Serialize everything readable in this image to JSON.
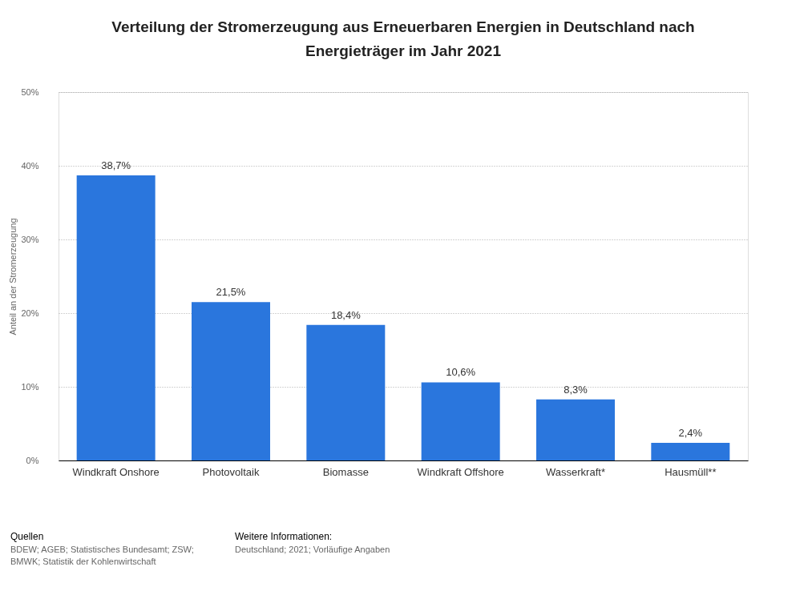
{
  "chart_data": {
    "type": "bar",
    "title": "Verteilung der Stromerzeugung aus Erneuerbaren Energien in Deutschland nach Energieträger im Jahr 2021",
    "ylabel": "Anteil an der Stromerzeugung",
    "categories": [
      "Windkraft Onshore",
      "Photovoltaik",
      "Biomasse",
      "Windkraft Offshore",
      "Wasserkraft*",
      "Hausmüll**"
    ],
    "values": [
      38.7,
      21.5,
      18.4,
      10.6,
      8.3,
      2.4
    ],
    "value_labels": [
      "38,7%",
      "21,5%",
      "18,4%",
      "10,6%",
      "8,3%",
      "2,4%"
    ],
    "color": "#2a76dd",
    "ylim": [
      0,
      50
    ],
    "yticks": [
      {
        "value": 0,
        "label": "0%"
      },
      {
        "value": 10,
        "label": "10%"
      },
      {
        "value": 20,
        "label": "20%"
      },
      {
        "value": 30,
        "label": "30%"
      },
      {
        "value": 40,
        "label": "40%"
      },
      {
        "value": 50,
        "label": "50%"
      }
    ],
    "grid": "y",
    "annotations": [
      "Quellen",
      "BDEW; AGEB; Statistisches Bundesamt; ZSW; BMWK; Statistik der Kohlenwirtschaft",
      "Weitere Informationen:",
      "Deutschland; 2021; Vorläufige Angaben"
    ]
  }
}
